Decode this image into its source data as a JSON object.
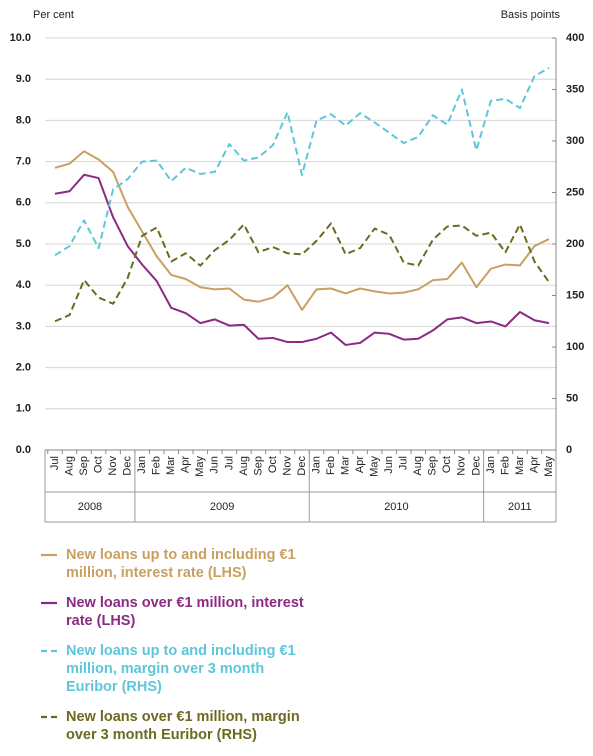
{
  "chart_data": {
    "type": "line",
    "ylabel": "Per cent",
    "y2label": "Basis points",
    "categories": [
      "Jul",
      "Aug",
      "Sep",
      "Oct",
      "Nov",
      "Dec",
      "Jan",
      "Feb",
      "Mar",
      "Apr",
      "May",
      "Jun",
      "Jul",
      "Aug",
      "Sep",
      "Oct",
      "Nov",
      "Dec",
      "Jan",
      "Feb",
      "Mar",
      "Apr",
      "May",
      "Jun",
      "Jul",
      "Aug",
      "Sep",
      "Oct",
      "Nov",
      "Dec",
      "Jan",
      "Feb",
      "Mar",
      "Apr",
      "May"
    ],
    "year_labels": [
      "2008",
      "2009",
      "2010",
      "2011"
    ],
    "ylim": [
      0,
      10
    ],
    "yticks": [
      {
        "value": 0,
        "label": "0.0"
      },
      {
        "value": 1,
        "label": "1.0"
      },
      {
        "value": 2,
        "label": "2.0"
      },
      {
        "value": 3,
        "label": "3.0"
      },
      {
        "value": 4,
        "label": "4.0"
      },
      {
        "value": 5,
        "label": "5.0"
      },
      {
        "value": 6,
        "label": "6.0"
      },
      {
        "value": 7,
        "label": "7.0"
      },
      {
        "value": 8,
        "label": "8.0"
      },
      {
        "value": 9,
        "label": "9.0"
      },
      {
        "value": 10,
        "label": "10.0"
      }
    ],
    "y2lim": [
      0,
      400
    ],
    "y2ticks": [
      0,
      50,
      100,
      150,
      200,
      250,
      300,
      350,
      400
    ],
    "grid": true,
    "series": [
      {
        "name": "New loans up to and including €1 million, interest rate (LHS)",
        "color": "#c9a060",
        "dashed": false,
        "values": [
          6.85,
          6.95,
          7.25,
          7.05,
          6.75,
          5.9,
          5.3,
          4.7,
          4.25,
          4.15,
          3.95,
          3.9,
          3.92,
          3.65,
          3.6,
          3.7,
          4.0,
          3.4,
          3.9,
          3.92,
          3.8,
          3.92,
          3.85,
          3.8,
          3.82,
          3.9,
          4.12,
          4.15,
          4.55,
          3.95,
          4.4,
          4.5,
          4.48,
          4.95,
          5.12
        ]
      },
      {
        "name": "New loans over €1 million, interest rate (LHS)",
        "color": "#8b2a83",
        "dashed": false,
        "values": [
          6.22,
          6.28,
          6.68,
          6.6,
          5.65,
          4.95,
          4.5,
          4.1,
          3.45,
          3.32,
          3.08,
          3.17,
          3.02,
          3.04,
          2.7,
          2.72,
          2.62,
          2.62,
          2.7,
          2.85,
          2.55,
          2.6,
          2.85,
          2.82,
          2.68,
          2.7,
          2.9,
          3.17,
          3.22,
          3.08,
          3.12,
          3.0,
          3.35,
          3.15,
          3.08
        ]
      },
      {
        "name": "New loans up to and including €1 million, margin over 3 month Euribor (RHS)",
        "color": "#5ec6da",
        "dashed": true,
        "axis": "y2",
        "values": [
          189,
          198,
          223,
          196,
          253,
          263,
          280,
          281,
          261,
          274,
          268,
          270,
          297,
          281,
          284,
          296,
          328,
          267,
          320,
          326,
          315,
          327,
          318,
          308,
          298,
          304,
          325,
          316,
          350,
          291,
          339,
          341,
          332,
          363,
          371
        ]
      },
      {
        "name": "New loans over €1 million, margin over 3 month Euribor (RHS)",
        "color": "#6b6a1e",
        "dashed": true,
        "axis": "y2",
        "values": [
          125,
          131,
          165,
          148,
          142,
          167,
          208,
          216,
          183,
          191,
          179,
          194,
          204,
          219,
          192,
          197,
          191,
          190,
          203,
          220,
          190,
          196,
          215,
          209,
          182,
          179,
          204,
          217,
          218,
          208,
          211,
          192,
          219,
          183,
          163
        ]
      }
    ]
  }
}
